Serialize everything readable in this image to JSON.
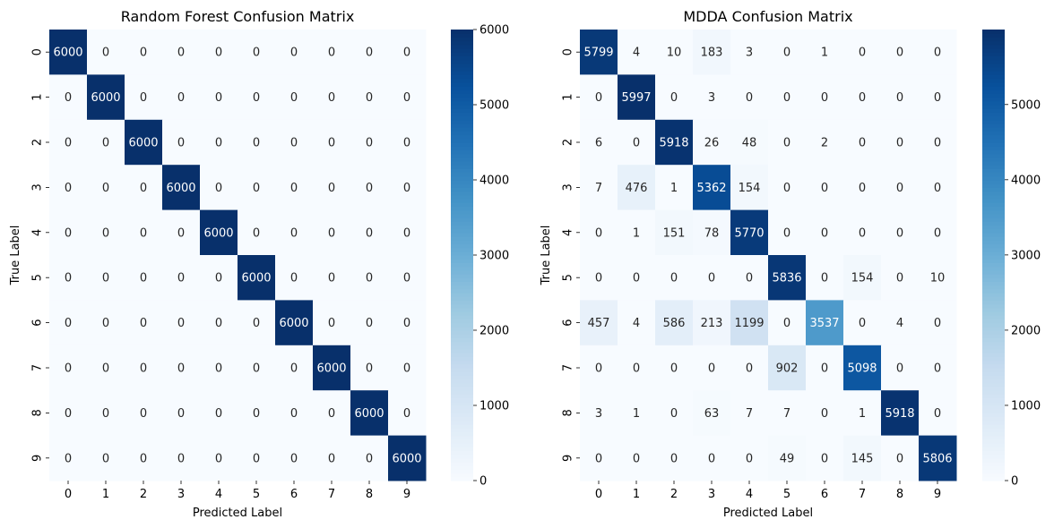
{
  "colors": {
    "cmap": [
      "#f7fbff",
      "#deebf7",
      "#c6dbef",
      "#9ecae1",
      "#6baed6",
      "#4292c6",
      "#2171b5",
      "#08519c",
      "#08306b"
    ],
    "text_dark": "#262626",
    "text_light": "#ffffff"
  },
  "chart_data": [
    {
      "type": "heatmap",
      "title": "Random Forest Confusion Matrix",
      "xlabel": "Predicted Label",
      "ylabel": "True Label",
      "x_categories": [
        "0",
        "1",
        "2",
        "3",
        "4",
        "5",
        "6",
        "7",
        "8",
        "9"
      ],
      "y_categories": [
        "0",
        "1",
        "2",
        "3",
        "4",
        "5",
        "6",
        "7",
        "8",
        "9"
      ],
      "colormap": "Blues",
      "vmin": 0,
      "vmax": 6000,
      "colorbar_ticks": [
        0,
        1000,
        2000,
        3000,
        4000,
        5000,
        6000
      ],
      "matrix": [
        [
          6000,
          0,
          0,
          0,
          0,
          0,
          0,
          0,
          0,
          0
        ],
        [
          0,
          6000,
          0,
          0,
          0,
          0,
          0,
          0,
          0,
          0
        ],
        [
          0,
          0,
          6000,
          0,
          0,
          0,
          0,
          0,
          0,
          0
        ],
        [
          0,
          0,
          0,
          6000,
          0,
          0,
          0,
          0,
          0,
          0
        ],
        [
          0,
          0,
          0,
          0,
          6000,
          0,
          0,
          0,
          0,
          0
        ],
        [
          0,
          0,
          0,
          0,
          0,
          6000,
          0,
          0,
          0,
          0
        ],
        [
          0,
          0,
          0,
          0,
          0,
          0,
          6000,
          0,
          0,
          0
        ],
        [
          0,
          0,
          0,
          0,
          0,
          0,
          0,
          6000,
          0,
          0
        ],
        [
          0,
          0,
          0,
          0,
          0,
          0,
          0,
          0,
          6000,
          0
        ],
        [
          0,
          0,
          0,
          0,
          0,
          0,
          0,
          0,
          0,
          6000
        ]
      ]
    },
    {
      "type": "heatmap",
      "title": "MDDA Confusion Matrix",
      "xlabel": "Predicted Label",
      "ylabel": "True Label",
      "x_categories": [
        "0",
        "1",
        "2",
        "3",
        "4",
        "5",
        "6",
        "7",
        "8",
        "9"
      ],
      "y_categories": [
        "0",
        "1",
        "2",
        "3",
        "4",
        "5",
        "6",
        "7",
        "8",
        "9"
      ],
      "colormap": "Blues",
      "vmin": 0,
      "vmax": 5997,
      "colorbar_ticks": [
        0,
        1000,
        2000,
        3000,
        4000,
        5000
      ],
      "matrix": [
        [
          5799,
          4,
          10,
          183,
          3,
          0,
          1,
          0,
          0,
          0
        ],
        [
          0,
          5997,
          0,
          3,
          0,
          0,
          0,
          0,
          0,
          0
        ],
        [
          6,
          0,
          5918,
          26,
          48,
          0,
          2,
          0,
          0,
          0
        ],
        [
          7,
          476,
          1,
          5362,
          154,
          0,
          0,
          0,
          0,
          0
        ],
        [
          0,
          1,
          151,
          78,
          5770,
          0,
          0,
          0,
          0,
          0
        ],
        [
          0,
          0,
          0,
          0,
          0,
          5836,
          0,
          154,
          0,
          10
        ],
        [
          457,
          4,
          586,
          213,
          1199,
          0,
          3537,
          0,
          4,
          0
        ],
        [
          0,
          0,
          0,
          0,
          0,
          902,
          0,
          5098,
          0,
          0
        ],
        [
          3,
          1,
          0,
          63,
          7,
          7,
          0,
          1,
          5918,
          0
        ],
        [
          0,
          0,
          0,
          0,
          0,
          49,
          0,
          145,
          0,
          5806
        ]
      ]
    }
  ]
}
